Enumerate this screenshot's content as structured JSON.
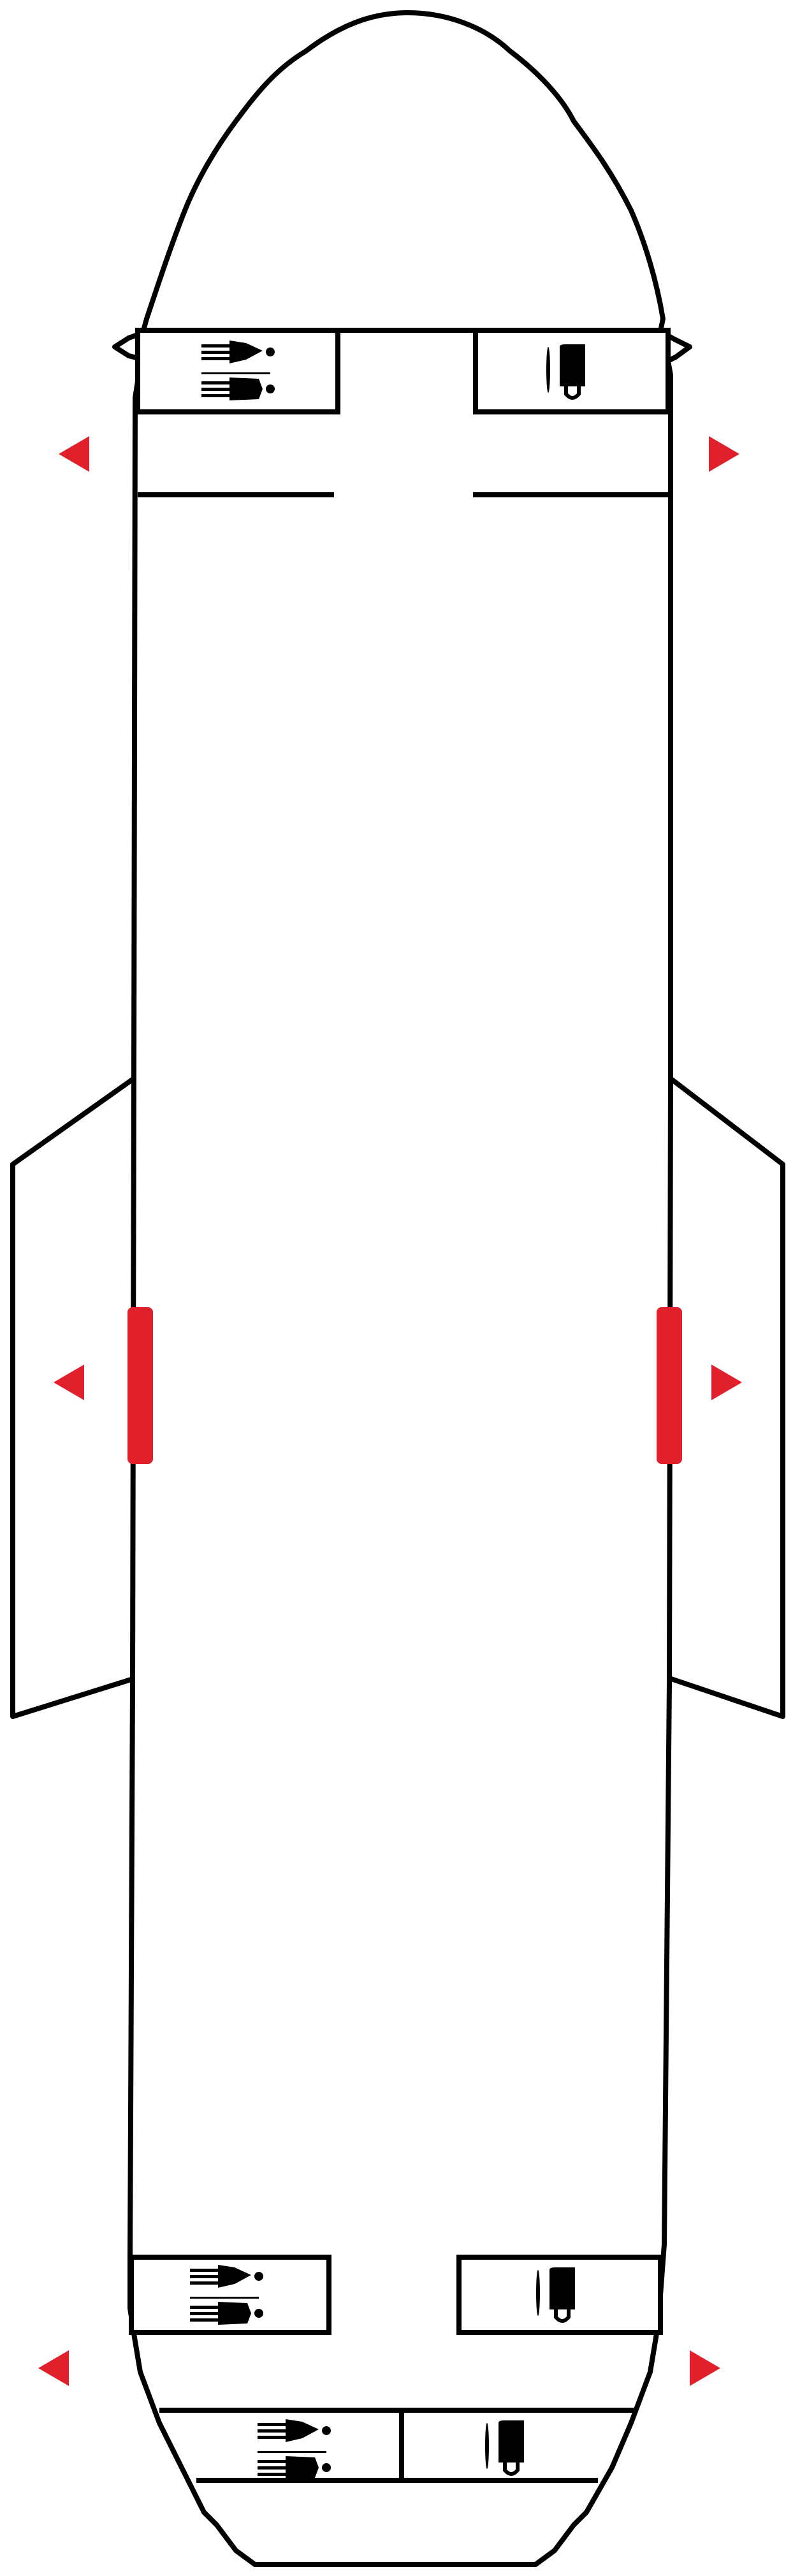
{
  "diagram": {
    "kind": "aircraft-cabin-layout",
    "colors": {
      "outline": "#000000",
      "exit_marker": "#e0202a",
      "background": "#ffffff"
    },
    "exits": [
      {
        "side": "left",
        "zone": "forward"
      },
      {
        "side": "right",
        "zone": "forward"
      },
      {
        "side": "left",
        "zone": "overwing"
      },
      {
        "side": "right",
        "zone": "overwing"
      },
      {
        "side": "left",
        "zone": "aft"
      },
      {
        "side": "right",
        "zone": "aft"
      }
    ],
    "facilities": [
      {
        "zone": "forward-left",
        "icon": "lavatory-icon"
      },
      {
        "zone": "forward-right",
        "icon": "galley-icon"
      },
      {
        "zone": "aft-left",
        "icon": "lavatory-icon"
      },
      {
        "zone": "aft-right",
        "icon": "galley-icon"
      },
      {
        "zone": "tail-left",
        "icon": "lavatory-icon"
      },
      {
        "zone": "tail-right",
        "icon": "galley-icon"
      }
    ],
    "wing_doors": [
      {
        "side": "left",
        "icon": "overwing-exit-door"
      },
      {
        "side": "right",
        "icon": "overwing-exit-door"
      }
    ]
  }
}
